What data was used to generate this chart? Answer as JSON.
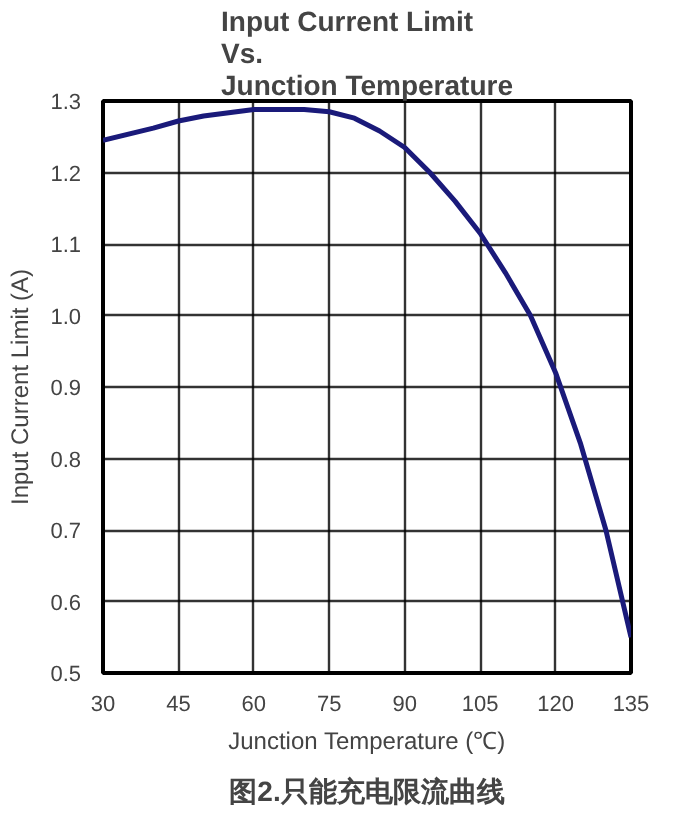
{
  "chart_data": {
    "type": "line",
    "title": "Input Current Limit\nVs.\nJunction Temperature",
    "xlabel": "Junction Temperature (℃)",
    "ylabel": "Input Current Limit (A)",
    "annotations": [
      "图2.只能充电限流曲线"
    ],
    "x": [
      30,
      40,
      45,
      50,
      60,
      70,
      75,
      80,
      85,
      90,
      95,
      100,
      105,
      110,
      115,
      120,
      125,
      130,
      135
    ],
    "series": [
      {
        "color": "#1a1a7a",
        "values": [
          1.245,
          1.262,
          1.272,
          1.279,
          1.288,
          1.288,
          1.285,
          1.276,
          1.258,
          1.235,
          1.2,
          1.16,
          1.115,
          1.06,
          1.0,
          0.92,
          0.82,
          0.7,
          0.55
        ]
      }
    ],
    "xlim": [
      30,
      135
    ],
    "ylim": [
      0.5,
      1.3
    ],
    "xticks": [
      30,
      45,
      60,
      75,
      90,
      105,
      120,
      135
    ],
    "yticks": [
      0.5,
      0.6,
      0.7,
      0.8,
      0.9,
      {
        "value": 1.0,
        "label": "1.0"
      },
      1.1,
      1.2,
      1.3
    ],
    "grid": true,
    "line_style": "solid",
    "marker": "none"
  }
}
